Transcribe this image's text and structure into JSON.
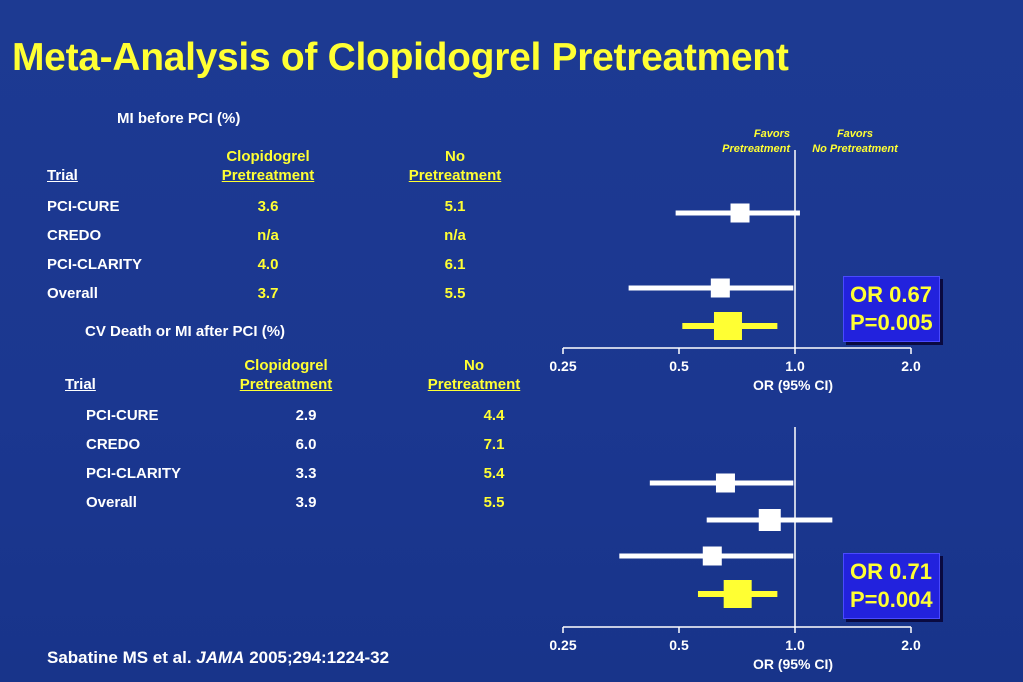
{
  "title": "Meta-Analysis of Clopidogrel Pretreatment",
  "section1": {
    "heading": "MI before PCI (%)",
    "col_trial": "Trial",
    "col_clop_line1": "Clopidogrel",
    "col_clop_line2": "Pretreatment",
    "col_no_line1": "No",
    "col_no_line2": "Pretreatment",
    "rows": [
      {
        "trial": "PCI-CURE",
        "clop": "3.6",
        "no": "5.1"
      },
      {
        "trial": "CREDO",
        "clop": "n/a",
        "no": "n/a"
      },
      {
        "trial": "PCI-CLARITY",
        "clop": "4.0",
        "no": "6.1"
      },
      {
        "trial": "Overall",
        "clop": "3.7",
        "no": "5.5"
      }
    ]
  },
  "section2": {
    "heading": "CV Death or MI after PCI (%)",
    "col_trial": "Trial",
    "col_clop_line1": "Clopidogrel",
    "col_clop_line2": "Pretreatment",
    "col_no_line1": "No",
    "col_no_line2": "Pretreatment",
    "rows": [
      {
        "trial": "PCI-CURE",
        "clop": "2.9",
        "no": "4.4"
      },
      {
        "trial": "CREDO",
        "clop": "6.0",
        "no": "7.1"
      },
      {
        "trial": "PCI-CLARITY",
        "clop": "3.3",
        "no": "5.4"
      },
      {
        "trial": "Overall",
        "clop": "3.9",
        "no": "5.5"
      }
    ]
  },
  "favors_left_line1": "Favors",
  "favors_left_line2": "Pretreatment",
  "favors_right_line1": "Favors",
  "favors_right_line2": "No Pretreatment",
  "or_box1_line1": "OR 0.67",
  "or_box1_line2": "P=0.005",
  "or_box2_line1": "OR 0.71",
  "or_box2_line2": "P=0.004",
  "citation": {
    "authors": "Sabatine MS et al.",
    "journal": "JAMA",
    "ref": "2005;294:1224-32"
  },
  "colors": {
    "background": "#1d3a92",
    "title": "#ffff33",
    "overall_marker": "#ffff33",
    "trial_marker": "#ffffff",
    "or_box": "#2222dd"
  },
  "chart_data": [
    {
      "type": "forest",
      "xlabel": "OR (95% CI)",
      "x_scale": "log2",
      "xlim": [
        0.25,
        2.0
      ],
      "ticks": [
        "0.25",
        "0.5",
        "1.0",
        "2.0"
      ],
      "tick_values": [
        0.25,
        0.5,
        1.0,
        2.0
      ],
      "reference_line": 1.0,
      "estimates": [
        {
          "label": "PCI-CURE",
          "or": 0.72,
          "ci": [
            0.49,
            1.03
          ],
          "overall": false
        },
        {
          "label": "PCI-CLARITY",
          "or": 0.64,
          "ci": [
            0.37,
            0.99
          ],
          "overall": false
        },
        {
          "label": "Overall",
          "or": 0.67,
          "ci": [
            0.51,
            0.9
          ],
          "overall": true
        }
      ]
    },
    {
      "type": "forest",
      "xlabel": "OR (95% CI)",
      "x_scale": "log2",
      "xlim": [
        0.25,
        2.0
      ],
      "ticks": [
        "0.25",
        "0.5",
        "1.0",
        "2.0"
      ],
      "tick_values": [
        0.25,
        0.5,
        1.0,
        2.0
      ],
      "reference_line": 1.0,
      "estimates": [
        {
          "label": "PCI-CURE",
          "or": 0.66,
          "ci": [
            0.42,
            0.99
          ],
          "overall": false
        },
        {
          "label": "CREDO",
          "or": 0.86,
          "ci": [
            0.59,
            1.25
          ],
          "overall": false
        },
        {
          "label": "PCI-CLARITY",
          "or": 0.61,
          "ci": [
            0.35,
            0.99
          ],
          "overall": false
        },
        {
          "label": "Overall",
          "or": 0.71,
          "ci": [
            0.56,
            0.9
          ],
          "overall": true
        }
      ]
    }
  ]
}
